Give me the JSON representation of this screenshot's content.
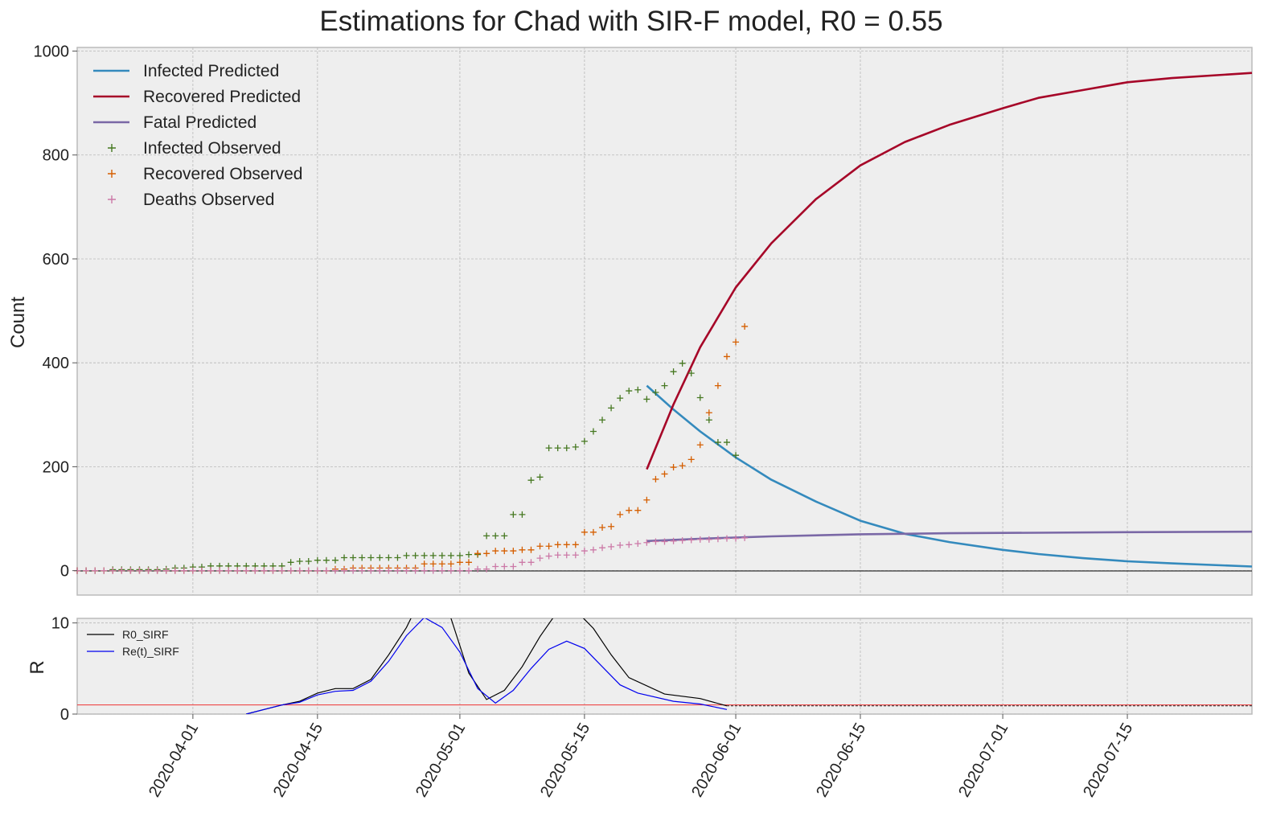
{
  "title": "Estimations for Chad with SIR-F model, R0 = 0.55",
  "colors": {
    "infected": "#348abd",
    "recovered": "#a60628",
    "fatal": "#7a68a6",
    "infected_obs": "#467821",
    "recovered_obs": "#d55e00",
    "deaths_obs": "#cc79a7",
    "r0": "#000000",
    "ret": "#0000ee",
    "threshold": "#ee3333",
    "panel_bg": "#eeeeee",
    "grid": "#b8b8b8"
  },
  "date_ticks": [
    "2020-04-01",
    "2020-04-15",
    "2020-05-01",
    "2020-05-15",
    "2020-06-01",
    "2020-06-15",
    "2020-07-01",
    "2020-07-15"
  ],
  "chart_data": [
    {
      "type": "line",
      "title": "Estimations for Chad with SIR-F model, R0 = 0.55",
      "ylabel": "Count",
      "xlim": [
        "2020-03-19",
        "2020-07-29"
      ],
      "ylim": [
        -47,
        1007
      ],
      "y_ticks": [
        "0",
        "200",
        "400",
        "600",
        "800",
        "1000"
      ],
      "grid": true,
      "legend_position": "upper-left",
      "series": [
        {
          "name": "Infected Predicted",
          "style": "line",
          "color_key": "infected",
          "x": [
            "2020-05-22",
            "2020-05-25",
            "2020-05-28",
            "2020-06-01",
            "2020-06-05",
            "2020-06-10",
            "2020-06-15",
            "2020-06-20",
            "2020-06-25",
            "2020-07-01",
            "2020-07-05",
            "2020-07-10",
            "2020-07-15",
            "2020-07-20",
            "2020-07-29"
          ],
          "values": [
            356,
            310,
            268,
            218,
            175,
            133,
            96,
            71,
            55,
            40,
            32,
            24,
            18,
            14,
            8
          ]
        },
        {
          "name": "Recovered Predicted",
          "style": "line",
          "color_key": "recovered",
          "x": [
            "2020-05-22",
            "2020-05-25",
            "2020-05-28",
            "2020-06-01",
            "2020-06-05",
            "2020-06-10",
            "2020-06-15",
            "2020-06-20",
            "2020-06-25",
            "2020-07-01",
            "2020-07-05",
            "2020-07-10",
            "2020-07-15",
            "2020-07-20",
            "2020-07-29"
          ],
          "values": [
            195,
            320,
            430,
            545,
            630,
            715,
            780,
            825,
            858,
            890,
            910,
            925,
            940,
            948,
            958
          ]
        },
        {
          "name": "Fatal Predicted",
          "style": "line",
          "color_key": "fatal",
          "x": [
            "2020-05-22",
            "2020-05-29",
            "2020-06-05",
            "2020-06-15",
            "2020-06-25",
            "2020-07-05",
            "2020-07-15",
            "2020-07-29"
          ],
          "values": [
            57,
            62,
            66,
            70,
            72,
            73,
            74,
            75
          ]
        },
        {
          "name": "Infected Observed",
          "style": "marker",
          "color_key": "infected_obs",
          "start": "2020-03-19",
          "values": [
            0,
            0,
            0,
            0,
            2,
            2,
            2,
            2,
            2,
            2,
            3,
            5,
            5,
            7,
            7,
            9,
            9,
            9,
            9,
            9,
            9,
            9,
            9,
            9,
            16,
            18,
            18,
            20,
            20,
            20,
            25,
            25,
            25,
            25,
            25,
            25,
            25,
            29,
            29,
            29,
            29,
            29,
            29,
            29,
            31,
            31,
            67,
            67,
            67,
            108,
            108,
            174,
            180,
            236,
            236,
            236,
            238,
            249,
            268,
            290,
            313,
            332,
            346,
            348,
            330,
            343,
            356,
            383,
            399,
            380,
            333,
            290,
            247,
            247,
            222
          ]
        },
        {
          "name": "Recovered Observed",
          "style": "marker",
          "color_key": "recovered_obs",
          "start": "2020-03-19",
          "values": [
            0,
            0,
            0,
            0,
            0,
            0,
            0,
            0,
            0,
            0,
            0,
            0,
            0,
            0,
            0,
            0,
            0,
            0,
            0,
            0,
            0,
            0,
            0,
            0,
            0,
            0,
            0,
            0,
            0,
            3,
            3,
            5,
            5,
            5,
            5,
            5,
            5,
            5,
            5,
            13,
            13,
            13,
            13,
            16,
            16,
            33,
            33,
            38,
            38,
            38,
            40,
            40,
            47,
            47,
            50,
            50,
            50,
            74,
            74,
            83,
            85,
            108,
            116,
            116,
            136,
            176,
            186,
            199,
            202,
            214,
            242,
            304,
            356,
            412,
            440,
            470
          ]
        },
        {
          "name": "Deaths Observed",
          "style": "marker",
          "color_key": "deaths_obs",
          "start": "2020-03-19",
          "values": [
            0,
            0,
            0,
            0,
            0,
            0,
            0,
            0,
            0,
            0,
            0,
            0,
            0,
            0,
            0,
            0,
            0,
            0,
            0,
            0,
            0,
            0,
            0,
            0,
            0,
            0,
            0,
            0,
            0,
            0,
            0,
            0,
            0,
            0,
            0,
            0,
            0,
            0,
            0,
            0,
            0,
            0,
            0,
            0,
            0,
            3,
            3,
            8,
            8,
            8,
            16,
            16,
            24,
            28,
            30,
            30,
            30,
            38,
            40,
            44,
            46,
            49,
            50,
            52,
            54,
            56,
            56,
            57,
            58,
            59,
            60,
            60,
            61,
            62,
            62,
            63
          ]
        }
      ]
    },
    {
      "type": "line",
      "ylabel": "R",
      "xlim": [
        "2020-03-19",
        "2020-07-29"
      ],
      "ylim": [
        0,
        10.5
      ],
      "y_ticks": [
        "0",
        "10"
      ],
      "grid": true,
      "legend_position": "upper-left",
      "threshold": 1,
      "series": [
        {
          "name": "R0_SIRF",
          "color_key": "r0",
          "x": [
            "2020-04-07",
            "2020-04-09",
            "2020-04-11",
            "2020-04-13",
            "2020-04-15",
            "2020-04-17",
            "2020-04-19",
            "2020-04-21",
            "2020-04-23",
            "2020-04-25",
            "2020-04-26",
            "2020-04-28",
            "2020-04-30",
            "2020-05-02",
            "2020-05-04",
            "2020-05-06",
            "2020-05-08",
            "2020-05-10",
            "2020-05-12",
            "2020-05-14",
            "2020-05-16",
            "2020-05-18",
            "2020-05-20",
            "2020-05-24",
            "2020-05-28",
            "2020-05-31"
          ],
          "values": [
            0,
            0.5,
            1.0,
            1.4,
            2.3,
            2.8,
            2.8,
            3.8,
            6.5,
            9.5,
            11.5,
            13,
            10.5,
            4.5,
            1.6,
            2.6,
            5.2,
            8.5,
            11.3,
            11.4,
            9.4,
            6.5,
            4.0,
            2.2,
            1.7,
            0.9
          ]
        },
        {
          "name": "Re(t)_SIRF",
          "color_key": "ret",
          "x": [
            "2020-04-07",
            "2020-04-09",
            "2020-04-11",
            "2020-04-13",
            "2020-04-15",
            "2020-04-17",
            "2020-04-19",
            "2020-04-21",
            "2020-04-23",
            "2020-04-25",
            "2020-04-27",
            "2020-04-29",
            "2020-05-01",
            "2020-05-03",
            "2020-05-05",
            "2020-05-07",
            "2020-05-09",
            "2020-05-11",
            "2020-05-13",
            "2020-05-15",
            "2020-05-17",
            "2020-05-19",
            "2020-05-21",
            "2020-05-25",
            "2020-05-28",
            "2020-05-31"
          ],
          "values": [
            0,
            0.5,
            1.0,
            1.3,
            2.1,
            2.5,
            2.6,
            3.6,
            5.8,
            8.6,
            10.6,
            9.5,
            6.8,
            2.8,
            1.2,
            2.6,
            5.0,
            7.1,
            8.0,
            7.2,
            5.2,
            3.2,
            2.3,
            1.4,
            1.1,
            0.5
          ]
        }
      ]
    }
  ]
}
